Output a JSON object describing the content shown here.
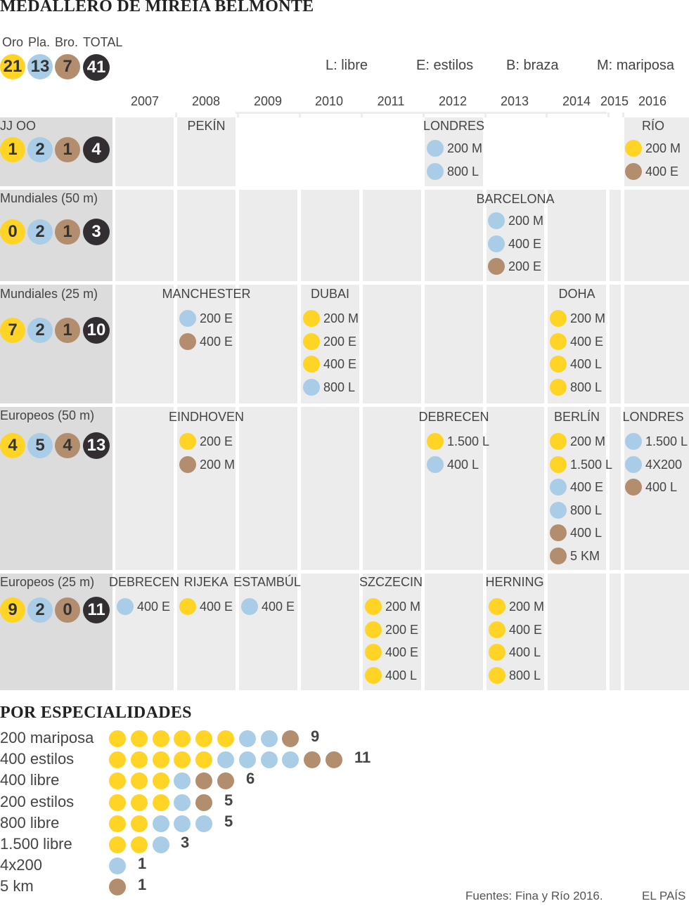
{
  "title": "MEDALLERO DE MIREIA BELMONTE",
  "summary": {
    "headers": [
      "Oro",
      "Pla.",
      "Bro.",
      "TOTAL"
    ],
    "values": [
      21,
      13,
      7,
      41
    ]
  },
  "legend": [
    {
      "code": "L",
      "text": "L: libre"
    },
    {
      "code": "E",
      "text": "E: estilos"
    },
    {
      "code": "B",
      "text": "B: braza"
    },
    {
      "code": "M",
      "text": "M: mariposa"
    }
  ],
  "colors": {
    "oro": "#FFD424",
    "plata": "#A9CDE6",
    "bronce": "#B28E6E",
    "total": "#332E31",
    "panel_bg": "#ECECEC",
    "label_bg": "#DCDCDC"
  },
  "years": [
    "2007",
    "2008",
    "2009",
    "2010",
    "2011",
    "2012",
    "2013",
    "2014",
    "2015",
    "2016"
  ],
  "chart_data": {
    "type": "table",
    "competitions": [
      {
        "name": "JJ OO",
        "totals": [
          1,
          2,
          1,
          4
        ],
        "events": [
          {
            "year": "2012",
            "city": "LONDRES",
            "medals": [
              {
                "m": "plata",
                "ev": "200 M"
              },
              {
                "m": "plata",
                "ev": "800 L"
              }
            ]
          },
          {
            "year": "2016",
            "city": "RÍO",
            "medals": [
              {
                "m": "oro",
                "ev": "200 M"
              },
              {
                "m": "bronce",
                "ev": "400 E"
              }
            ]
          },
          {
            "year": "2008",
            "city": "PEKÍN",
            "medals": []
          }
        ]
      },
      {
        "name": "Mundiales (50 m)",
        "totals": [
          0,
          2,
          1,
          3
        ],
        "events": [
          {
            "year": "2013",
            "city": "BARCELONA",
            "medals": [
              {
                "m": "plata",
                "ev": "200 M"
              },
              {
                "m": "plata",
                "ev": "400 E"
              },
              {
                "m": "bronce",
                "ev": "200 E"
              }
            ]
          }
        ]
      },
      {
        "name": "Mundiales (25 m)",
        "totals": [
          7,
          2,
          1,
          10
        ],
        "events": [
          {
            "year": "2008",
            "city": "MANCHESTER",
            "medals": [
              {
                "m": "plata",
                "ev": "200 E"
              },
              {
                "m": "bronce",
                "ev": "400 E"
              }
            ]
          },
          {
            "year": "2010",
            "city": "DUBAI",
            "medals": [
              {
                "m": "oro",
                "ev": "200 M"
              },
              {
                "m": "oro",
                "ev": "200 E"
              },
              {
                "m": "oro",
                "ev": "400 E"
              },
              {
                "m": "plata",
                "ev": "800 L"
              }
            ]
          },
          {
            "year": "2014",
            "city": "DOHA",
            "medals": [
              {
                "m": "oro",
                "ev": "200 M"
              },
              {
                "m": "oro",
                "ev": "400 E"
              },
              {
                "m": "oro",
                "ev": "400 L"
              },
              {
                "m": "oro",
                "ev": "800 L"
              }
            ]
          }
        ]
      },
      {
        "name": "Europeos (50 m)",
        "totals": [
          4,
          5,
          4,
          13
        ],
        "events": [
          {
            "year": "2008",
            "city": "EINDHOVEN",
            "medals": [
              {
                "m": "oro",
                "ev": "200 E"
              },
              {
                "m": "bronce",
                "ev": "200 M"
              }
            ]
          },
          {
            "year": "2012",
            "city": "DEBRECEN",
            "medals": [
              {
                "m": "oro",
                "ev": "1.500 L"
              },
              {
                "m": "plata",
                "ev": "400 L"
              }
            ]
          },
          {
            "year": "2014",
            "city": "BERLÍN",
            "medals": [
              {
                "m": "oro",
                "ev": "200 M"
              },
              {
                "m": "oro",
                "ev": "1.500 L"
              },
              {
                "m": "plata",
                "ev": "400 E"
              },
              {
                "m": "plata",
                "ev": "800 L"
              },
              {
                "m": "bronce",
                "ev": "400 L"
              },
              {
                "m": "bronce",
                "ev": "5 KM"
              }
            ]
          },
          {
            "year": "2016",
            "city": "LONDRES",
            "medals": [
              {
                "m": "plata",
                "ev": "1.500 L"
              },
              {
                "m": "plata",
                "ev": "4X200"
              },
              {
                "m": "bronce",
                "ev": "400 L"
              }
            ]
          }
        ]
      },
      {
        "name": "Europeos (25 m)",
        "totals": [
          9,
          2,
          0,
          11
        ],
        "events": [
          {
            "year": "2007",
            "city": "DEBRECEN",
            "medals": [
              {
                "m": "plata",
                "ev": "400 E"
              }
            ]
          },
          {
            "year": "2008",
            "city": "RIJEKA",
            "medals": [
              {
                "m": "oro",
                "ev": "400 E"
              }
            ]
          },
          {
            "year": "2009",
            "city": "ESTAMBÚL",
            "medals": [
              {
                "m": "plata",
                "ev": "400 E"
              }
            ]
          },
          {
            "year": "2011",
            "city": "SZCZECIN",
            "medals": [
              {
                "m": "oro",
                "ev": "200 M"
              },
              {
                "m": "oro",
                "ev": "200 E"
              },
              {
                "m": "oro",
                "ev": "400 E"
              },
              {
                "m": "oro",
                "ev": "400 L"
              }
            ]
          },
          {
            "year": "2013",
            "city": "HERNING",
            "medals": [
              {
                "m": "oro",
                "ev": "200 M"
              },
              {
                "m": "oro",
                "ev": "400 E"
              },
              {
                "m": "oro",
                "ev": "400 L"
              },
              {
                "m": "oro",
                "ev": "800 L"
              }
            ]
          }
        ]
      }
    ],
    "specialties": {
      "title": "POR ESPECIALIDADES",
      "items": [
        {
          "label": "200 mariposa",
          "oro": 6,
          "plata": 2,
          "bronce": 1,
          "total": 9
        },
        {
          "label": "400 estilos",
          "oro": 5,
          "plata": 4,
          "bronce": 2,
          "total": 11
        },
        {
          "label": "400 libre",
          "oro": 3,
          "plata": 1,
          "bronce": 2,
          "total": 6
        },
        {
          "label": "200 estilos",
          "oro": 3,
          "plata": 1,
          "bronce": 1,
          "total": 5
        },
        {
          "label": "800 libre",
          "oro": 2,
          "plata": 3,
          "bronce": 0,
          "total": 5
        },
        {
          "label": "1.500 libre",
          "oro": 2,
          "plata": 1,
          "bronce": 0,
          "total": 3
        },
        {
          "label": "4x200",
          "oro": 0,
          "plata": 1,
          "bronce": 0,
          "total": 1
        },
        {
          "label": "5 km",
          "oro": 0,
          "plata": 0,
          "bronce": 1,
          "total": 1
        }
      ]
    }
  },
  "footer": {
    "source": "Fuentes: Fina y Río 2016.",
    "brand": "EL PAÍS"
  }
}
